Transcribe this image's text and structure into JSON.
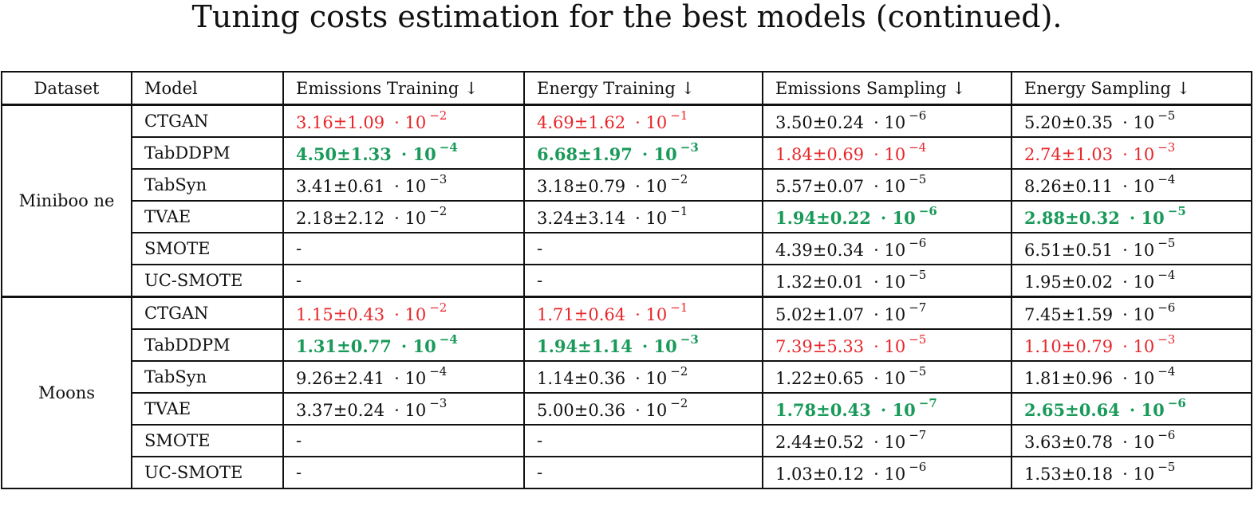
{
  "caption": "Tuning costs estimation for the best models (continued).",
  "table": {
    "headers": {
      "dataset": "Dataset",
      "model": "Model",
      "emissions_training": "Emissions Training ↓",
      "energy_training": "Energy Training ↓",
      "emissions_sampling": "Emissions Sampling ↓",
      "energy_sampling": "Energy Sampling ↓"
    },
    "groups": [
      {
        "dataset": "Miniboo ne",
        "rows": [
          {
            "model": "CTGAN",
            "cells": [
              {
                "value": "3.16±1.09",
                "exp": "−2",
                "style": "red"
              },
              {
                "value": "4.69±1.62",
                "exp": "−1",
                "style": "red"
              },
              {
                "value": "3.50±0.24",
                "exp": "−6",
                "style": "plain"
              },
              {
                "value": "5.20±0.35",
                "exp": "−5",
                "style": "plain"
              }
            ]
          },
          {
            "model": "TabDDPM",
            "cells": [
              {
                "value": "4.50±1.33",
                "exp": "−4",
                "style": "green"
              },
              {
                "value": "6.68±1.97",
                "exp": "−3",
                "style": "green"
              },
              {
                "value": "1.84±0.69",
                "exp": "−4",
                "style": "red"
              },
              {
                "value": "2.74±1.03",
                "exp": "−3",
                "style": "red"
              }
            ]
          },
          {
            "model": "TabSyn",
            "cells": [
              {
                "value": "3.41±0.61",
                "exp": "−3",
                "style": "plain"
              },
              {
                "value": "3.18±0.79",
                "exp": "−2",
                "style": "plain"
              },
              {
                "value": "5.57±0.07",
                "exp": "−5",
                "style": "plain"
              },
              {
                "value": "8.26±0.11",
                "exp": "−4",
                "style": "plain"
              }
            ]
          },
          {
            "model": "TVAE",
            "cells": [
              {
                "value": "2.18±2.12",
                "exp": "−2",
                "style": "plain"
              },
              {
                "value": "3.24±3.14",
                "exp": "−1",
                "style": "plain"
              },
              {
                "value": "1.94±0.22",
                "exp": "−6",
                "style": "green"
              },
              {
                "value": "2.88±0.32",
                "exp": "−5",
                "style": "green"
              }
            ]
          },
          {
            "model": "SMOTE",
            "cells": [
              {
                "value": "-",
                "exp": null,
                "style": "plain"
              },
              {
                "value": "-",
                "exp": null,
                "style": "plain"
              },
              {
                "value": "4.39±0.34",
                "exp": "−6",
                "style": "plain"
              },
              {
                "value": "6.51±0.51",
                "exp": "−5",
                "style": "plain"
              }
            ]
          },
          {
            "model": "UC-SMOTE",
            "cells": [
              {
                "value": "-",
                "exp": null,
                "style": "plain"
              },
              {
                "value": "-",
                "exp": null,
                "style": "plain"
              },
              {
                "value": "1.32±0.01",
                "exp": "−5",
                "style": "plain"
              },
              {
                "value": "1.95±0.02",
                "exp": "−4",
                "style": "plain"
              }
            ]
          }
        ]
      },
      {
        "dataset": "Moons",
        "rows": [
          {
            "model": "CTGAN",
            "cells": [
              {
                "value": "1.15±0.43",
                "exp": "−2",
                "style": "red"
              },
              {
                "value": "1.71±0.64",
                "exp": "−1",
                "style": "red"
              },
              {
                "value": "5.02±1.07",
                "exp": "−7",
                "style": "plain"
              },
              {
                "value": "7.45±1.59",
                "exp": "−6",
                "style": "plain"
              }
            ]
          },
          {
            "model": "TabDDPM",
            "cells": [
              {
                "value": "1.31±0.77",
                "exp": "−4",
                "style": "green"
              },
              {
                "value": "1.94±1.14",
                "exp": "−3",
                "style": "green"
              },
              {
                "value": "7.39±5.33",
                "exp": "−5",
                "style": "red"
              },
              {
                "value": "1.10±0.79",
                "exp": "−3",
                "style": "red"
              }
            ]
          },
          {
            "model": "TabSyn",
            "cells": [
              {
                "value": "9.26±2.41",
                "exp": "−4",
                "style": "plain"
              },
              {
                "value": "1.14±0.36",
                "exp": "−2",
                "style": "plain"
              },
              {
                "value": "1.22±0.65",
                "exp": "−5",
                "style": "plain"
              },
              {
                "value": "1.81±0.96",
                "exp": "−4",
                "style": "plain"
              }
            ]
          },
          {
            "model": "TVAE",
            "cells": [
              {
                "value": "3.37±0.24",
                "exp": "−3",
                "style": "plain"
              },
              {
                "value": "5.00±0.36",
                "exp": "−2",
                "style": "plain"
              },
              {
                "value": "1.78±0.43",
                "exp": "−7",
                "style": "green"
              },
              {
                "value": "2.65±0.64",
                "exp": "−6",
                "style": "green"
              }
            ]
          },
          {
            "model": "SMOTE",
            "cells": [
              {
                "value": "-",
                "exp": null,
                "style": "plain"
              },
              {
                "value": "-",
                "exp": null,
                "style": "plain"
              },
              {
                "value": "2.44±0.52",
                "exp": "−7",
                "style": "plain"
              },
              {
                "value": "3.63±0.78",
                "exp": "−6",
                "style": "plain"
              }
            ]
          },
          {
            "model": "UC-SMOTE",
            "cells": [
              {
                "value": "-",
                "exp": null,
                "style": "plain"
              },
              {
                "value": "-",
                "exp": null,
                "style": "plain"
              },
              {
                "value": "1.03±0.12",
                "exp": "−6",
                "style": "plain"
              },
              {
                "value": "1.53±0.18",
                "exp": "−5",
                "style": "plain"
              }
            ]
          }
        ]
      }
    ]
  },
  "colors": {
    "worst": "#e8262b",
    "best": "#1a9a5a",
    "text": "#111111"
  }
}
